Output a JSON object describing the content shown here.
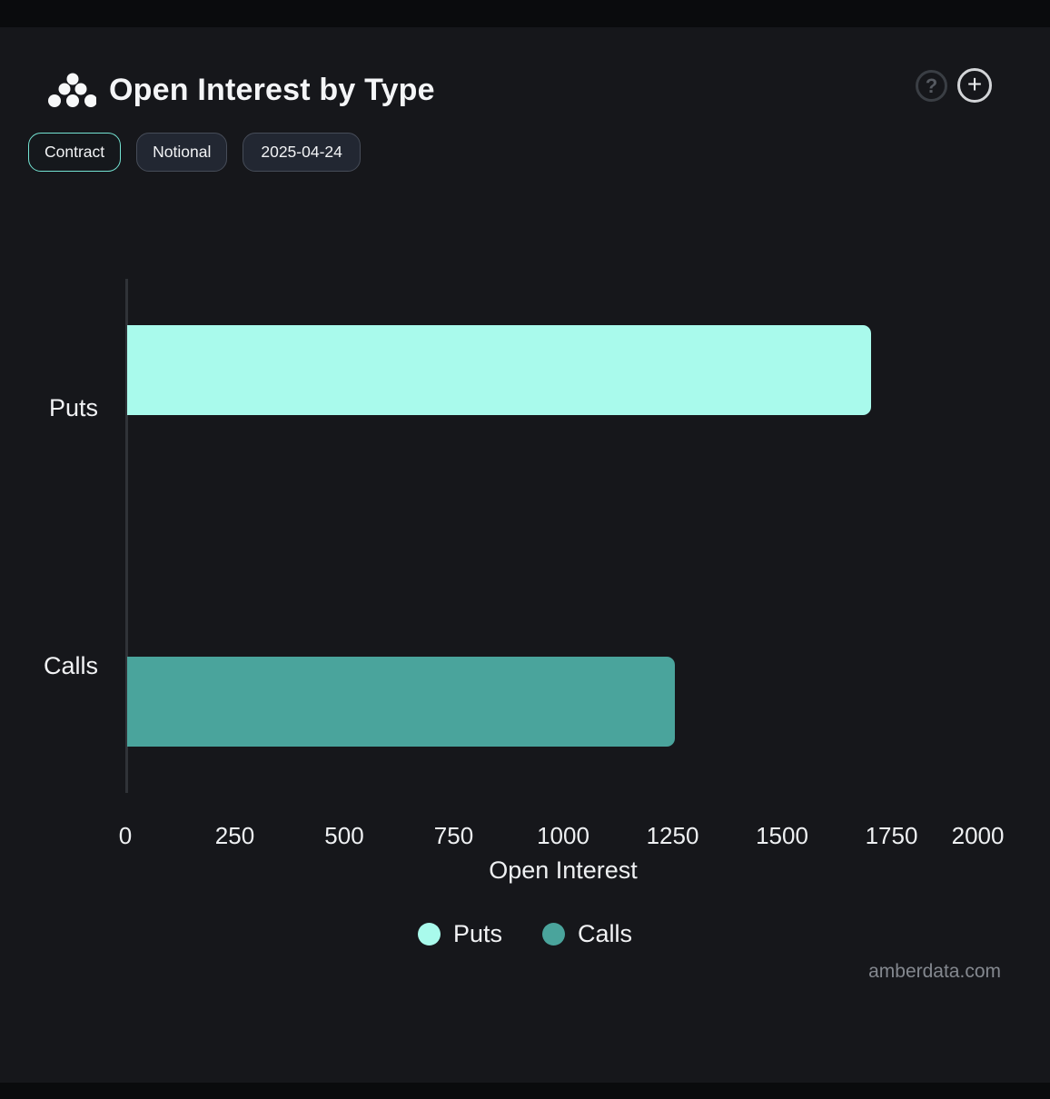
{
  "header": {
    "title": "Open Interest by Type",
    "help_icon": "?",
    "add_icon": "+"
  },
  "toolbar": {
    "contract_label": "Contract",
    "notional_label": "Notional",
    "date_label": "2025-04-24"
  },
  "chart_data": {
    "type": "bar",
    "orientation": "horizontal",
    "title": "Open Interest by Type",
    "categories": [
      "Puts",
      "Calls"
    ],
    "values": [
      1700,
      1250
    ],
    "colors": [
      "#a9faec",
      "#4aa49c"
    ],
    "xlabel": "Open Interest",
    "ylabel": "",
    "xlim": [
      0,
      2000
    ],
    "xticks": [
      0,
      250,
      500,
      750,
      1000,
      1250,
      1500,
      1750,
      2000
    ],
    "grid": false,
    "legend": {
      "position": "bottom",
      "entries": [
        "Puts",
        "Calls"
      ]
    }
  },
  "footer": {
    "watermark": "amberdata.com"
  }
}
